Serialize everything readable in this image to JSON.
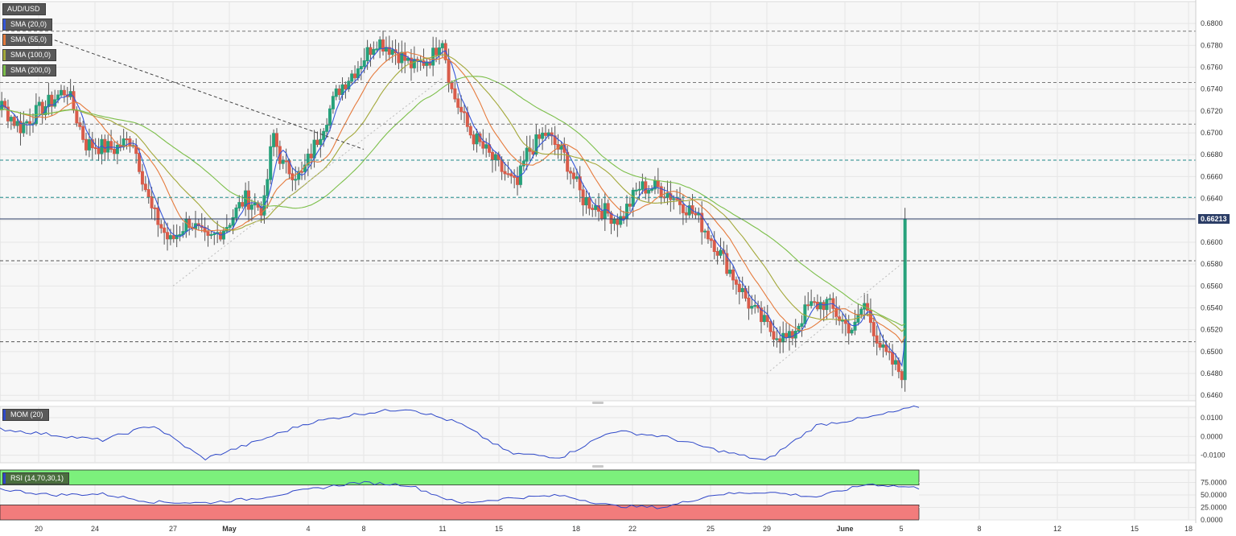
{
  "title": "AUD/USD",
  "last_price": "0.66213",
  "colors": {
    "bull": "#26a17b",
    "bear": "#d95c4a",
    "sma20": "#3556d8",
    "sma55": "#e57a3c",
    "sma100": "#a3a83a",
    "sma200": "#7cbf4a",
    "price_line": "#2b3d66",
    "mom": "#2f49c9",
    "rsi": "#3046c8",
    "rsi_upper_zone": "#7cf07c",
    "rsi_lower_zone": "#f27c7c"
  },
  "legend": {
    "sma20": "SMA (20,0)",
    "sma55": "SMA (55,0)",
    "sma100": "SMA (100,0)",
    "sma200": "SMA (200,0)",
    "mom": "MOM (20)",
    "rsi": "RSI (14,70,30,1)"
  },
  "chart_data": [
    {
      "type": "candlestick",
      "title": "AUD/USD",
      "ylim": [
        0.6455,
        0.682
      ],
      "y_ticks": [
        "0.6460",
        "0.6480",
        "0.6500",
        "0.6520",
        "0.6540",
        "0.6560",
        "0.6580",
        "0.6600",
        "0.6620",
        "0.6640",
        "0.6660",
        "0.6680",
        "0.6700",
        "0.6720",
        "0.6740",
        "0.6760",
        "0.6780",
        "0.6800"
      ],
      "x_ticks": [
        "20",
        "24",
        "27",
        "May",
        "4",
        "8",
        "11",
        "15",
        "18",
        "22",
        "25",
        "29",
        "June",
        "5",
        "8",
        "12",
        "15",
        "18"
      ],
      "grid": true,
      "current_price": 0.66213,
      "horizontal_levels": [
        {
          "price": 0.6793,
          "style": "dashed",
          "color": "#777777"
        },
        {
          "price": 0.6746,
          "style": "dashed",
          "color": "#777777"
        },
        {
          "price": 0.6708,
          "style": "dashed",
          "color": "#777777"
        },
        {
          "price": 0.6675,
          "style": "dashed",
          "color": "#1f8a8a"
        },
        {
          "price": 0.6641,
          "style": "dashed",
          "color": "#1f8a8a"
        },
        {
          "price": 0.6583,
          "style": "dashed",
          "color": "#555555"
        },
        {
          "price": 0.6509,
          "style": "dashed",
          "color": "#555555"
        }
      ],
      "trend_lines": [
        {
          "from": [
            "20",
            0.679
          ],
          "to": [
            "8",
            0.6685
          ],
          "style": "dashed",
          "color": "#444444"
        },
        {
          "from": [
            "27",
            0.656
          ],
          "to": [
            "11",
            0.675
          ],
          "style": "dotted",
          "color": "#bbbbbb"
        },
        {
          "from": [
            "29",
            0.648
          ],
          "to": [
            "5",
            0.658
          ],
          "style": "dotted",
          "color": "#bbbbbb"
        }
      ],
      "series": [
        {
          "name": "SMA (20,0)"
        },
        {
          "name": "SMA (55,0)"
        },
        {
          "name": "SMA (100,0)"
        },
        {
          "name": "SMA (200,0)"
        }
      ]
    },
    {
      "type": "line",
      "title": "MOM (20)",
      "ylim": [
        -0.014,
        0.016
      ],
      "y_ticks": [
        "0.0100",
        "0.0000",
        "-0.0100"
      ],
      "key_points": [
        0.004,
        0.001,
        -0.002,
        0.006,
        -0.012,
        -0.003,
        0.007,
        0.012,
        0.015,
        0.007,
        -0.009,
        -0.011,
        0.003,
        0.0,
        -0.007,
        -0.013,
        0.006,
        0.01,
        0.016
      ]
    },
    {
      "type": "line",
      "title": "RSI (14,70,30,1)",
      "ylim": [
        0,
        100
      ],
      "y_ticks": [
        "75.0000",
        "50.0000",
        "25.0000",
        "0.0000"
      ],
      "overbought": 70,
      "oversold": 30,
      "key_points": [
        62,
        50,
        52,
        36,
        34,
        43,
        60,
        75,
        70,
        33,
        44,
        49,
        28,
        25,
        51,
        56,
        46,
        72,
        64
      ]
    }
  ]
}
